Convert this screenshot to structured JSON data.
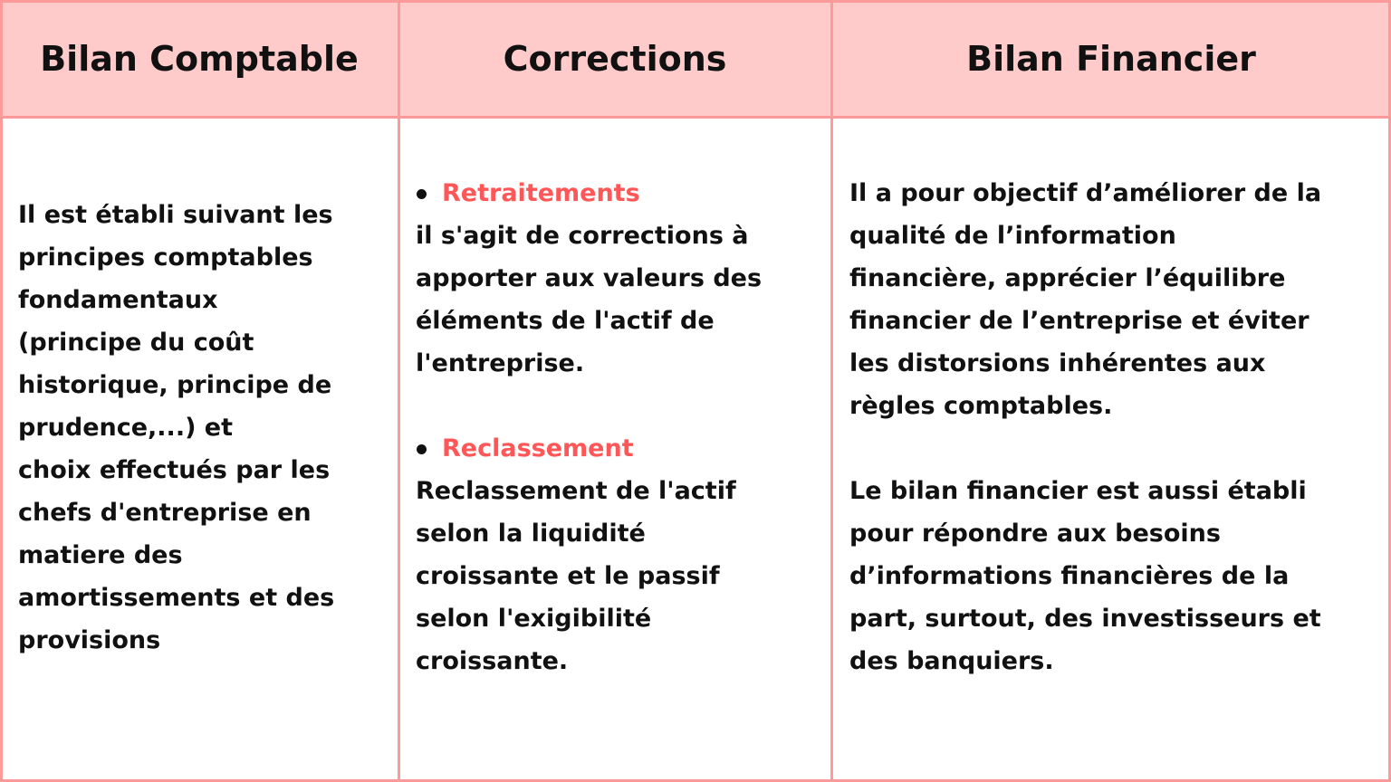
{
  "headers": [
    "Bilan Comptable",
    "Corrections",
    "Bilan Financier"
  ],
  "colors": {
    "header_bg": "#ffcaca",
    "border": "#ff9a9a",
    "accent": "#ff5757"
  },
  "bilan_comptable": {
    "lines": [
      "Il est établi suivant les",
      "principes comptables",
      "fondamentaux",
      "(principe du coût",
      "historique, principe de",
      "prudence,...) et",
      "choix effectués par les",
      "chefs d'entreprise en",
      "matiere des",
      "amortissements et des",
      "provisions"
    ]
  },
  "corrections": {
    "retraitements": {
      "title": "Retraitements",
      "lines": [
        "il s'agit de corrections à",
        "apporter aux valeurs des",
        "éléments de l'actif de",
        "l'entreprise."
      ]
    },
    "reclassement": {
      "title": "Reclassement",
      "lines": [
        "Reclassement de l'actif",
        "selon la liquidité",
        "croissante  et le passif",
        "selon l'exigibilité",
        "croissante."
      ]
    }
  },
  "bilan_financier": {
    "para1": [
      "Il a pour objectif d’améliorer de la",
      "qualité de l’information",
      "financière, apprécier l’équilibre",
      "financier  de l’entreprise et éviter",
      "les distorsions inhérentes aux",
      "règles comptables."
    ],
    "para2": [
      "Le bilan financier est aussi établi",
      "pour répondre aux besoins",
      "d’informations financières de la",
      "part, surtout, des investisseurs et",
      "des banquiers."
    ]
  }
}
